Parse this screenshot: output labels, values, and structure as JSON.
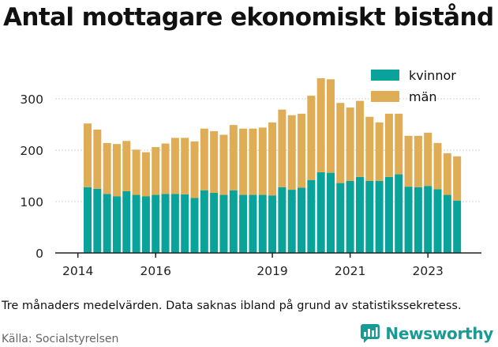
{
  "header": {
    "title": "Antal mottagare ekonomiskt bistånd"
  },
  "footer": {
    "note": "Tre månaders medelvärden. Data saknas ibland på grund av statistikssekretess.",
    "source": "Källa: Socialstyrelsen",
    "brand": "Newsworthy"
  },
  "colors": {
    "kvinnor": "#0aa39a",
    "man": "#dfad55",
    "grid": "#d2d2d2",
    "axis": "#222222",
    "brand": "#1a9a94"
  },
  "icons": {
    "brand": "bar-chart-speech-bubble-icon"
  },
  "chart_data": {
    "type": "bar",
    "stacked": true,
    "title": "Antal mottagare ekonomiskt bistånd",
    "xlabel": "",
    "ylabel": "",
    "ylim": [
      0,
      350
    ],
    "yticks": [
      0,
      100,
      200,
      300
    ],
    "xticks": [
      "2014",
      "2016",
      "2019",
      "2021",
      "2023"
    ],
    "grid": true,
    "legend_position": "top-right",
    "categories": [
      "2014 Q2",
      "2014 Q3",
      "2014 Q4",
      "2015 Q1",
      "2015 Q2",
      "2015 Q3",
      "2015 Q4",
      "2016 Q1",
      "2016 Q2",
      "2016 Q3",
      "2016 Q4",
      "2017 Q1",
      "2017 Q2",
      "2017 Q3",
      "2017 Q4",
      "2018 Q1",
      "2018 Q2",
      "2018 Q3",
      "2018 Q4",
      "2019 Q1",
      "2019 Q2",
      "2019 Q3",
      "2019 Q4",
      "2020 Q1",
      "2020 Q2",
      "2020 Q3",
      "2020 Q4",
      "2021 Q1",
      "2021 Q2",
      "2021 Q3",
      "2021 Q4",
      "2022 Q1",
      "2022 Q2",
      "2022 Q3",
      "2022 Q4",
      "2023 Q1",
      "2023 Q2",
      "2023 Q3",
      "2023 Q4"
    ],
    "series": [
      {
        "name": "kvinnor",
        "values": [
          128,
          125,
          115,
          110,
          120,
          113,
          110,
          113,
          115,
          115,
          114,
          107,
          122,
          117,
          113,
          122,
          113,
          113,
          113,
          112,
          128,
          123,
          127,
          142,
          157,
          156,
          136,
          140,
          148,
          140,
          140,
          148,
          153,
          129,
          128,
          130,
          124,
          113,
          102
        ]
      },
      {
        "name": "män",
        "values": [
          124,
          115,
          99,
          102,
          98,
          88,
          86,
          93,
          98,
          109,
          110,
          110,
          120,
          120,
          117,
          127,
          129,
          129,
          131,
          142,
          151,
          145,
          144,
          164,
          183,
          182,
          156,
          143,
          148,
          125,
          114,
          123,
          118,
          99,
          100,
          104,
          90,
          81,
          86
        ]
      }
    ]
  }
}
